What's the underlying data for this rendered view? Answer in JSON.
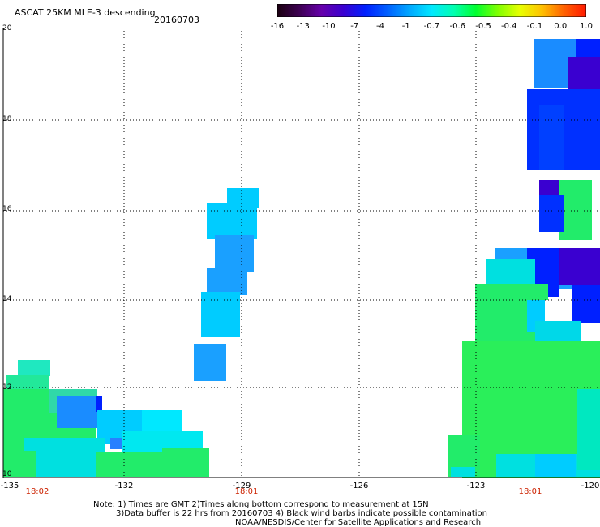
{
  "title": "ASCAT 25KM MLE-3 descending",
  "date": "20160703",
  "colorbar": {
    "labels": [
      "-16",
      "-13",
      "-10",
      "-7",
      "-4",
      "-1",
      "-0.7",
      "-0.6",
      "-0.5",
      "-0.4",
      "-0.1",
      "0.0",
      "1.0"
    ],
    "colors": [
      "#1a0010",
      "#3d0052",
      "#6600aa",
      "#3a00d0",
      "#0020ff",
      "#0060ff",
      "#00a8ff",
      "#00e8ff",
      "#00ffb0",
      "#00ff30",
      "#80ff00",
      "#e8ff00",
      "#ffc000",
      "#ff6000",
      "#ff1800"
    ]
  },
  "axes": {
    "lon_ticks": [
      "-135",
      "-132",
      "-129",
      "-126",
      "-123",
      "-120"
    ],
    "lat_ticks": [
      "20",
      "18",
      "16",
      "14",
      "12",
      "10"
    ],
    "time_labels": [
      "18:02",
      "18:01",
      "18:01"
    ]
  },
  "notes": [
    "Note: 1) Times are GMT 2)Times along bottom correspond to measurement at 15N",
    "3)Data buffer is 22 hrs from 20160703 4) Black wind barbs indicate possible contamination",
    "NOAA/NESDIS/Center for Satellite Applications and Research"
  ]
}
